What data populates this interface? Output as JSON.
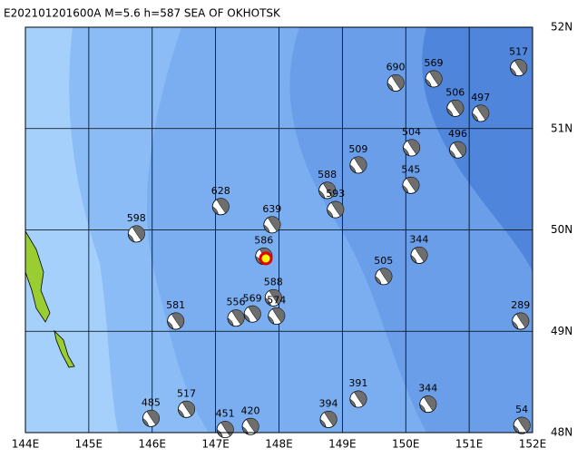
{
  "map": {
    "title": "E202101201600A  M=5.6  h=587  SEA OF OKHOTSK",
    "xlim": [
      144,
      152
    ],
    "ylim": [
      48,
      52
    ],
    "xticks": [
      {
        "value": 144,
        "label": "144E"
      },
      {
        "value": 145,
        "label": "145E"
      },
      {
        "value": 146,
        "label": "146E"
      },
      {
        "value": 147,
        "label": "147E"
      },
      {
        "value": 148,
        "label": "148E"
      },
      {
        "value": 149,
        "label": "149E"
      },
      {
        "value": 150,
        "label": "150E"
      },
      {
        "value": 151,
        "label": "151E"
      },
      {
        "value": 152,
        "label": "152E"
      }
    ],
    "yticks": [
      {
        "value": 48,
        "label": "48N"
      },
      {
        "value": 49,
        "label": "49N"
      },
      {
        "value": 50,
        "label": "50N"
      },
      {
        "value": 51,
        "label": "51N"
      },
      {
        "value": 52,
        "label": "52N"
      }
    ],
    "grid": true,
    "events": [
      {
        "label": "690",
        "lon": 149.84,
        "lat": 51.45
      },
      {
        "label": "569",
        "lon": 150.44,
        "lat": 51.49
      },
      {
        "label": "517",
        "lon": 151.78,
        "lat": 51.6
      },
      {
        "label": "506",
        "lon": 150.78,
        "lat": 51.2
      },
      {
        "label": "497",
        "lon": 151.18,
        "lat": 51.15
      },
      {
        "label": "504",
        "lon": 150.09,
        "lat": 50.81
      },
      {
        "label": "496",
        "lon": 150.82,
        "lat": 50.79
      },
      {
        "label": "509",
        "lon": 149.25,
        "lat": 50.64
      },
      {
        "label": "545",
        "lon": 150.08,
        "lat": 50.44
      },
      {
        "label": "588",
        "lon": 148.76,
        "lat": 50.39
      },
      {
        "label": "593",
        "lon": 148.89,
        "lat": 50.2
      },
      {
        "label": "628",
        "lon": 147.08,
        "lat": 50.23
      },
      {
        "label": "639",
        "lon": 147.89,
        "lat": 50.05
      },
      {
        "label": "598",
        "lon": 145.75,
        "lat": 49.96
      },
      {
        "label": "586",
        "lon": 147.76,
        "lat": 49.74
      },
      {
        "label": "344",
        "lon": 150.21,
        "lat": 49.75
      },
      {
        "label": "505",
        "lon": 149.65,
        "lat": 49.54
      },
      {
        "label": "588",
        "lon": 147.91,
        "lat": 49.33
      },
      {
        "label": "581",
        "lon": 146.37,
        "lat": 49.1
      },
      {
        "label": "556",
        "lon": 147.32,
        "lat": 49.13
      },
      {
        "label": "569",
        "lon": 147.58,
        "lat": 49.17
      },
      {
        "label": "574",
        "lon": 147.96,
        "lat": 49.15
      },
      {
        "label": "289",
        "lon": 151.81,
        "lat": 49.1
      },
      {
        "label": "485",
        "lon": 145.98,
        "lat": 48.14
      },
      {
        "label": "517",
        "lon": 146.54,
        "lat": 48.23
      },
      {
        "label": "451",
        "lon": 147.15,
        "lat": 48.03
      },
      {
        "label": "420",
        "lon": 147.55,
        "lat": 48.06
      },
      {
        "label": "394",
        "lon": 148.78,
        "lat": 48.13
      },
      {
        "label": "391",
        "lon": 149.25,
        "lat": 48.33
      },
      {
        "label": "344",
        "lon": 150.35,
        "lat": 48.28
      },
      {
        "label": "54",
        "lon": 151.83,
        "lat": 48.07
      }
    ]
  }
}
